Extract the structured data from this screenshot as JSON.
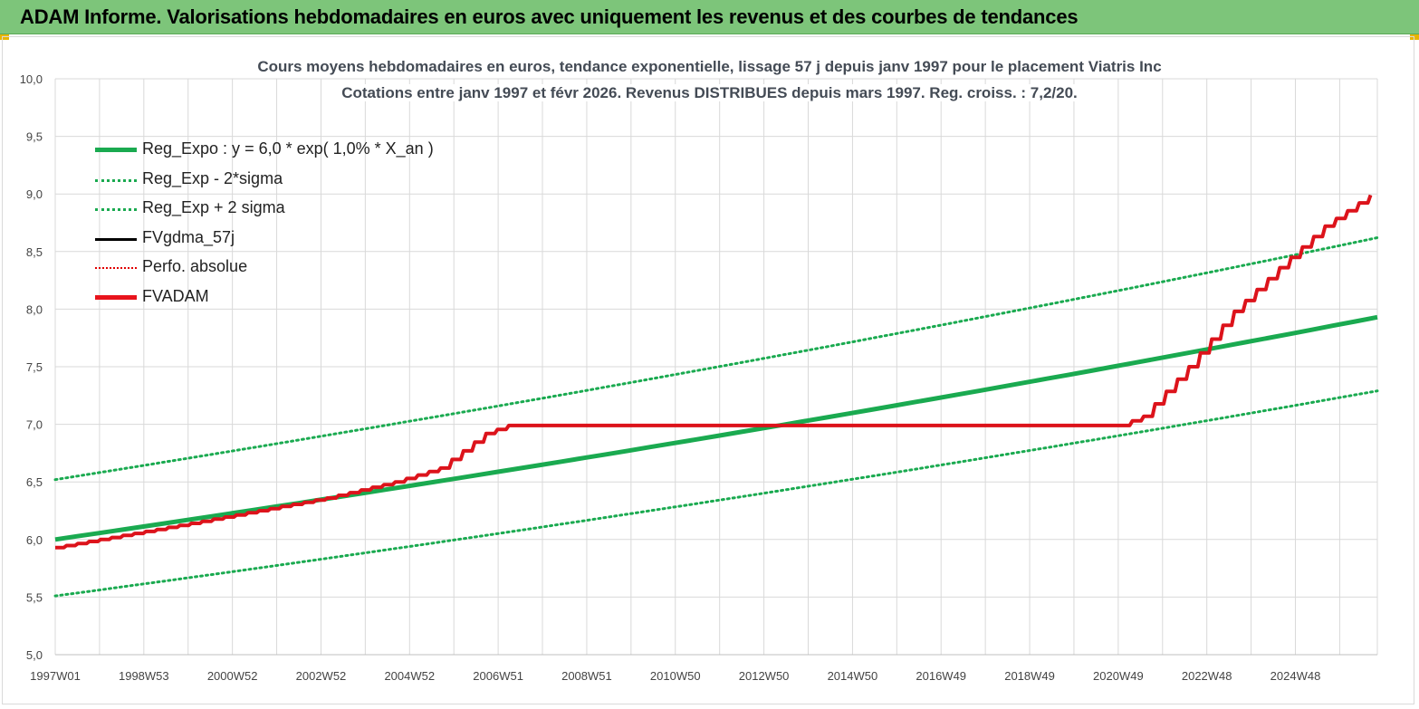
{
  "banner": {
    "title": "ADAM Informe. Valorisations hebdomadaires en euros avec uniquement les revenus et des courbes de tendances"
  },
  "colors": {
    "banner_bg": "#7dc57a",
    "reg_expo": "#1aaa50",
    "reg_band": "#1aaa50",
    "fvgdma": "#000000",
    "perfo": "#e00000",
    "fvadam": "#e8141c"
  },
  "chart_data": {
    "type": "line",
    "title": "Cours moyens hebdomadaires en euros, tendance exponentielle, lissage 57 j depuis janv 1997 pour le placement Viatris Inc",
    "subtitle": "Cotations entre janv 1997 et févr 2026. Revenus DISTRIBUES depuis mars 1997. Reg. croiss. : 7,2/20.",
    "xlabel": "",
    "ylabel": "",
    "ylim": [
      5.0,
      10.0
    ],
    "y_ticks": [
      "5,0",
      "5,5",
      "6,0",
      "6,5",
      "7,0",
      "7,5",
      "8,0",
      "8,5",
      "9,0",
      "9,5",
      "10,0"
    ],
    "x_ticks": [
      "1997W01",
      "1998W53",
      "2000W52",
      "2002W52",
      "2004W52",
      "2006W51",
      "2008W51",
      "2010W50",
      "2012W50",
      "2014W50",
      "2016W49",
      "2018W49",
      "2020W49",
      "2022W48",
      "2024W48"
    ],
    "xlim": [
      1997.0,
      2026.15
    ],
    "grid": true,
    "legend_position": "top-left",
    "series": [
      {
        "name": "Reg_Expo : y = 6,0 * exp( 1,0% *  X_an )",
        "style": "solid-thick",
        "x": [
          1997.0,
          2026.15
        ],
        "y": [
          6.0,
          7.93
        ]
      },
      {
        "name": "Reg_Exp - 2*sigma",
        "style": "dotted",
        "x": [
          1997.0,
          2026.15
        ],
        "y": [
          5.51,
          7.29
        ]
      },
      {
        "name": "Reg_Exp + 2 sigma",
        "style": "dotted",
        "x": [
          1997.0,
          2026.15
        ],
        "y": [
          6.52,
          8.62
        ]
      },
      {
        "name": "FVgdma_57j",
        "style": "solid",
        "x": [
          1997.0,
          2000.0,
          2003.0,
          2004.5,
          2005.5,
          2006.5,
          2007.0,
          2012.0,
          2020.5,
          2021.0,
          2022.0,
          2023.0,
          2024.0,
          2025.0,
          2026.15
        ],
        "y": [
          5.93,
          6.14,
          6.36,
          6.5,
          6.62,
          6.92,
          6.99,
          6.99,
          6.99,
          7.07,
          7.5,
          7.98,
          8.36,
          8.72,
          9.03
        ]
      },
      {
        "name": "Perfo. absolue",
        "style": "dotted",
        "x": [],
        "y": []
      },
      {
        "name": "FVADAM",
        "style": "solid-thick",
        "x": [
          1997.0,
          2000.0,
          2003.0,
          2004.5,
          2005.5,
          2006.5,
          2007.0,
          2012.0,
          2020.5,
          2021.0,
          2022.0,
          2023.0,
          2024.0,
          2025.0,
          2026.15
        ],
        "y": [
          5.93,
          6.14,
          6.36,
          6.5,
          6.62,
          6.92,
          6.99,
          6.99,
          6.99,
          7.07,
          7.5,
          7.98,
          8.36,
          8.72,
          9.03
        ]
      }
    ]
  }
}
